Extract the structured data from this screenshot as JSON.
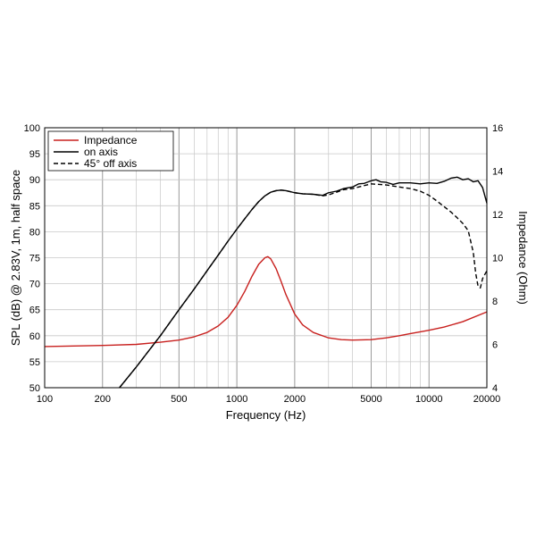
{
  "chart_data": {
    "type": "line",
    "xlabel": "Frequency (Hz)",
    "ylabel": "SPL (dB) @ 2.83V, 1m, half space",
    "y2label": "Impedance (Ohm)",
    "x_scale": "log",
    "xlim": [
      100,
      20000
    ],
    "ylim": [
      50,
      100
    ],
    "y2lim": [
      4,
      16
    ],
    "x_ticks": [
      100,
      200,
      500,
      1000,
      2000,
      5000,
      10000,
      20000
    ],
    "x_tick_labels": [
      "100",
      "200",
      "500",
      "1000",
      "2000",
      "5000",
      "10000",
      "20000"
    ],
    "y_ticks": [
      50,
      55,
      60,
      65,
      70,
      75,
      80,
      85,
      90,
      95,
      100
    ],
    "y_tick_labels": [
      "50",
      "55",
      "60",
      "65",
      "70",
      "75",
      "80",
      "85",
      "90",
      "95",
      "100"
    ],
    "y2_ticks": [
      4,
      6,
      8,
      10,
      12,
      14,
      16
    ],
    "y2_tick_labels": [
      "4",
      "6",
      "8",
      "10",
      "12",
      "14",
      "16"
    ],
    "grid": true,
    "legend": "top-left",
    "series": [
      {
        "name": "Impedance",
        "axis": "right",
        "color": "#c8201e",
        "style": "solid",
        "x": [
          100,
          200,
          300,
          400,
          500,
          600,
          700,
          800,
          900,
          1000,
          1100,
          1200,
          1300,
          1400,
          1450,
          1500,
          1600,
          1700,
          1800,
          2000,
          2200,
          2500,
          3000,
          3500,
          4000,
          5000,
          6000,
          7000,
          8000,
          10000,
          12000,
          15000,
          20000
        ],
        "values": [
          5.9,
          5.95,
          6.0,
          6.1,
          6.2,
          6.35,
          6.55,
          6.85,
          7.25,
          7.8,
          8.45,
          9.15,
          9.7,
          10.0,
          10.05,
          9.95,
          9.5,
          8.9,
          8.3,
          7.4,
          6.9,
          6.55,
          6.3,
          6.22,
          6.2,
          6.22,
          6.3,
          6.4,
          6.5,
          6.65,
          6.8,
          7.05,
          7.5
        ]
      },
      {
        "name": "on axis",
        "axis": "left",
        "color": "#000000",
        "style": "solid",
        "x": [
          245,
          300,
          400,
          500,
          600,
          700,
          800,
          900,
          1000,
          1100,
          1200,
          1300,
          1400,
          1500,
          1600,
          1700,
          1800,
          2000,
          2200,
          2500,
          2800,
          3000,
          3300,
          3600,
          4000,
          4300,
          4600,
          5000,
          5300,
          5600,
          6000,
          6500,
          7000,
          8000,
          9000,
          10000,
          11000,
          12000,
          13000,
          14000,
          15000,
          16000,
          17000,
          18000,
          19000,
          20000
        ],
        "values": [
          50,
          54,
          60,
          65,
          69,
          72.5,
          75.5,
          78.2,
          80.5,
          82.5,
          84.3,
          85.8,
          86.9,
          87.6,
          87.9,
          88.0,
          87.9,
          87.5,
          87.3,
          87.2,
          87.0,
          87.5,
          87.8,
          88.3,
          88.6,
          89.2,
          89.3,
          89.8,
          90.0,
          89.6,
          89.5,
          89.1,
          89.4,
          89.4,
          89.2,
          89.4,
          89.3,
          89.7,
          90.3,
          90.5,
          90.0,
          90.2,
          89.6,
          89.8,
          88.5,
          85.5
        ]
      },
      {
        "name": "45° off axis",
        "axis": "left",
        "color": "#000000",
        "style": "dashed",
        "x": [
          245,
          300,
          400,
          500,
          600,
          700,
          800,
          900,
          1000,
          1100,
          1200,
          1300,
          1400,
          1500,
          1600,
          1700,
          1800,
          2000,
          2200,
          2500,
          2800,
          3000,
          3300,
          3600,
          4000,
          4500,
          5000,
          5500,
          6000,
          7000,
          8000,
          9000,
          10000,
          11000,
          12000,
          13000,
          14000,
          15000,
          16000,
          17000,
          17500,
          18000,
          18500,
          19000,
          20000
        ],
        "values": [
          50,
          54,
          60,
          65,
          69,
          72.5,
          75.5,
          78.2,
          80.5,
          82.5,
          84.3,
          85.8,
          86.9,
          87.6,
          87.9,
          88.0,
          87.9,
          87.5,
          87.3,
          87.2,
          86.9,
          87.1,
          87.6,
          88.1,
          88.3,
          88.8,
          89.2,
          89.1,
          89.0,
          88.6,
          88.3,
          87.8,
          87.0,
          85.9,
          84.8,
          83.8,
          82.7,
          81.6,
          80.2,
          76.0,
          72.0,
          69.5,
          69.2,
          71.0,
          72.5
        ]
      }
    ]
  }
}
